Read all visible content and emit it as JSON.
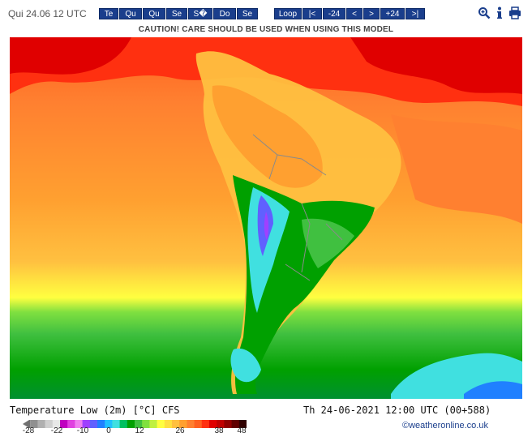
{
  "header": {
    "date": "Qui 24.06 12 UTC",
    "day_tabs": [
      "Te",
      "Qu",
      "Qu",
      "Se",
      "S�",
      "Do",
      "Se"
    ],
    "nav_buttons": [
      "Loop",
      "|<",
      "-24",
      "<",
      ">",
      "+24",
      ">|"
    ],
    "icons": [
      "zoom-icon",
      "info-icon",
      "print-icon"
    ]
  },
  "caution": "CAUTION! CARE SHOULD BE USED WHEN USING THIS MODEL",
  "map": {
    "title": "Temperature Low (2m) [°C] CFS",
    "valid_time": "Th 24-06-2021 12:00 UTC (00+588)"
  },
  "legend": {
    "ticks": [
      "-28",
      "-22",
      "-10",
      "0",
      "12",
      "26",
      "38",
      "48"
    ],
    "colors": [
      "#707070",
      "#909090",
      "#b0b0b0",
      "#d0d0d0",
      "#e8e8e8",
      "#c000c0",
      "#e040e0",
      "#f080f0",
      "#a040ff",
      "#6060ff",
      "#2080ff",
      "#20c0ff",
      "#40e0e0",
      "#00c060",
      "#00a000",
      "#40c040",
      "#80e040",
      "#c0f040",
      "#ffff40",
      "#ffe040",
      "#ffc040",
      "#ffa030",
      "#ff8030",
      "#ff6020",
      "#ff3010",
      "#e00000",
      "#c00000",
      "#900000",
      "#600000",
      "#300000"
    ]
  },
  "credit": "©weatheronline.co.uk"
}
